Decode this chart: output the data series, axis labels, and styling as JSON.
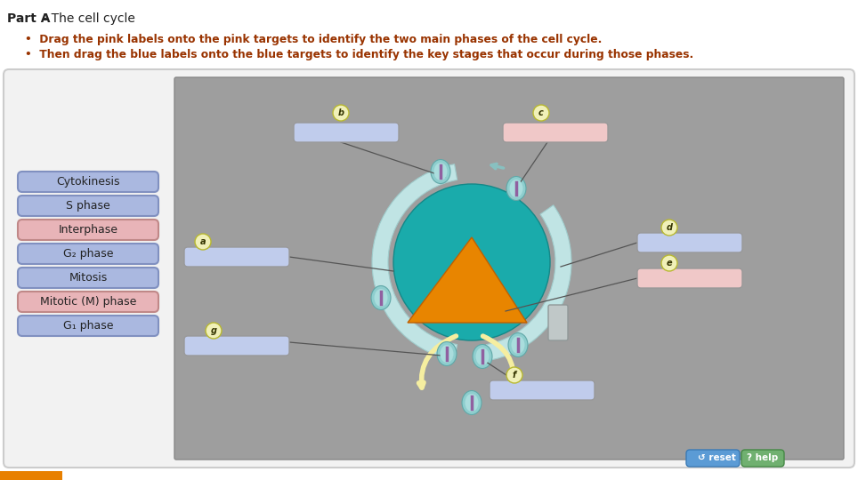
{
  "title_bold": "Part A",
  "title_dash": " - ",
  "title_normal": "The cell cycle",
  "bullet1": "Drag the pink labels onto the pink targets to identify the two main phases of the cell cycle.",
  "bullet2": "Then drag the blue labels onto the blue targets to identify the key stages that occur during those phases.",
  "labels": [
    {
      "text": "Cytokinesis",
      "color": "#aab8e0",
      "border": "#8090c0",
      "pink": false
    },
    {
      "text": "S phase",
      "color": "#aab8e0",
      "border": "#8090c0",
      "pink": false
    },
    {
      "text": "Interphase",
      "color": "#e8b4b8",
      "border": "#c08888",
      "pink": true
    },
    {
      "text": "G₂ phase",
      "color": "#aab8e0",
      "border": "#8090c0",
      "pink": false
    },
    {
      "text": "Mitosis",
      "color": "#aab8e0",
      "border": "#8090c0",
      "pink": false
    },
    {
      "text": "Mitotic (M) phase",
      "color": "#e8b4b8",
      "border": "#c08888",
      "pink": true
    },
    {
      "text": "G₁ phase",
      "color": "#aab8e0",
      "border": "#8090c0",
      "pink": false
    }
  ],
  "bg_gray": "#9e9e9e",
  "ring_light": "#b8e0e0",
  "teal_dark": "#1aabab",
  "orange": "#e88500",
  "cream": "#f5eea0",
  "target_blue": "#c0ccec",
  "target_pink": "#f0c8c8",
  "label_circ_fill": "#f0f0b8",
  "label_circ_edge": "#b8b830",
  "reset_fill": "#5b9bd5",
  "help_fill": "#70b070",
  "line_color": "#555555"
}
